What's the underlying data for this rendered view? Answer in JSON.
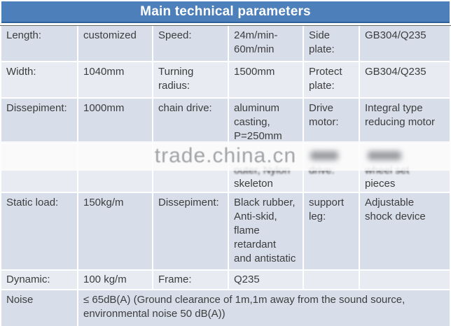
{
  "header": {
    "title": "Main technical parameters"
  },
  "watermark": {
    "text": "trade.china.cn"
  },
  "colors": {
    "title_bg": "#4d80ba",
    "title_edge": "#2f5f98",
    "title_text": "#ffffff",
    "row_dark": "#d7deea",
    "row_light": "#e8ebf2",
    "body_text": "#3d3d3d",
    "watermark_text": "#8d9094"
  },
  "table": {
    "rows": [
      {
        "cells": [
          "Length:",
          "customized",
          "Speed:",
          "24m/min-\n60m/min",
          "Side\nplate:",
          "GB304/Q235"
        ]
      },
      {
        "cells": [
          "Width:",
          "1040mm",
          "Turning\nradius:",
          "1500mm",
          "Protect\nplate:",
          "GB304/Q235"
        ]
      },
      {
        "cells": [
          "Dissepiment:",
          "1000mm",
          "chain drive:",
          "aluminum\ncasting,\nP=250mm",
          "Drive\nmotor:",
          "Integral type\nreducing motor"
        ]
      },
      {
        "frag": {
          "c4_blur": "outer, Nylon",
          "c4_clear": "skeleton",
          "c5_blur": "drive:",
          "c6_blur": "wheel set",
          "c6_clear": "pieces"
        }
      },
      {
        "cells": [
          "Static load:",
          "150kg/m",
          "Dissepiment:",
          "Black rubber,\nAnti-skid,\nflame\nretardant\nand antistatic",
          "support\nleg:",
          "Adjustable\nshock device"
        ]
      },
      {
        "cells": [
          "Dynamic:",
          "100 kg/m",
          "Frame:",
          "Q235",
          "",
          ""
        ]
      },
      {
        "label": "Noise",
        "value": "≤ 65dB(A) (Ground clearance of 1m,1m away from the sound source,\nenvironmental noise 50 dB(A))"
      }
    ]
  }
}
